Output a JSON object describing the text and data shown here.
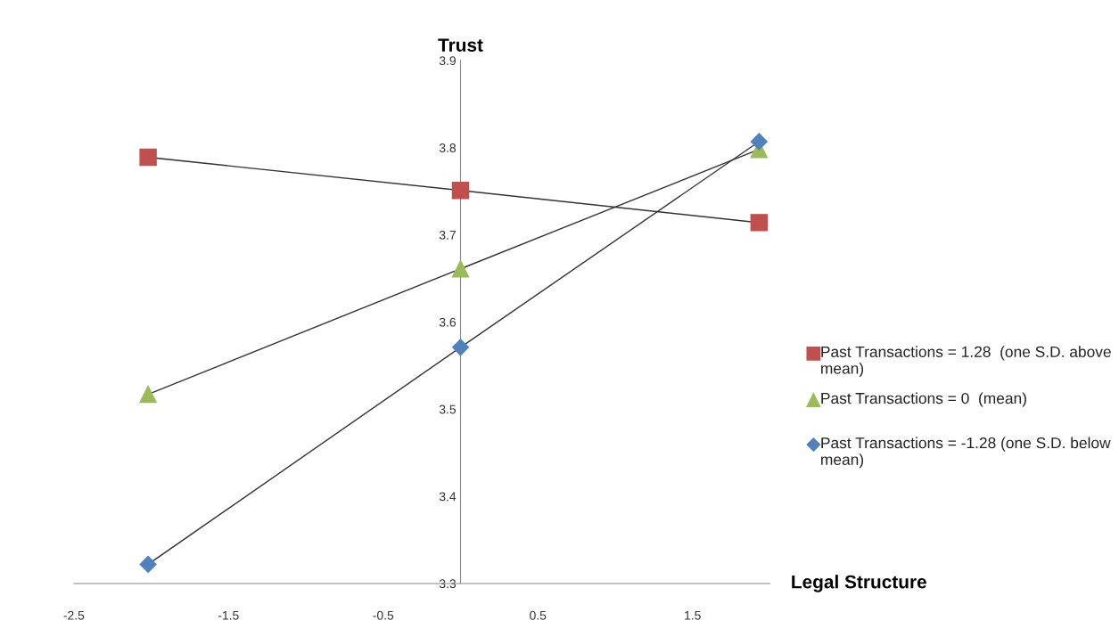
{
  "chart_data": {
    "type": "line",
    "xlabel": "Legal Structure",
    "ylabel": "Trust",
    "x": [
      -2.02,
      0,
      1.93
    ],
    "series": [
      {
        "name": "Past Transactions = 1.28  (one S.D. above mean)",
        "color": "#c0504d",
        "marker": "square",
        "values": [
          3.789,
          3.751,
          3.714
        ]
      },
      {
        "name": "Past Transactions = 0  (mean)",
        "color": "#9bbb59",
        "marker": "triangle",
        "values": [
          3.517,
          3.661,
          3.798
        ]
      },
      {
        "name": "Past Transactions = -1.28 (one S.D. below mean)",
        "color": "#4f81bd",
        "marker": "diamond",
        "values": [
          3.322,
          3.571,
          3.807
        ]
      }
    ],
    "xlim": [
      -2.5,
      2.0
    ],
    "xticks": [
      -2.5,
      -1.5,
      -0.5,
      0.5,
      1.5
    ],
    "ylim": [
      3.3,
      3.9
    ],
    "yticks": [
      3.3,
      3.4,
      3.5,
      3.6,
      3.7,
      3.8,
      3.9
    ],
    "grid": false,
    "legend": "right",
    "line_style": "solid"
  }
}
